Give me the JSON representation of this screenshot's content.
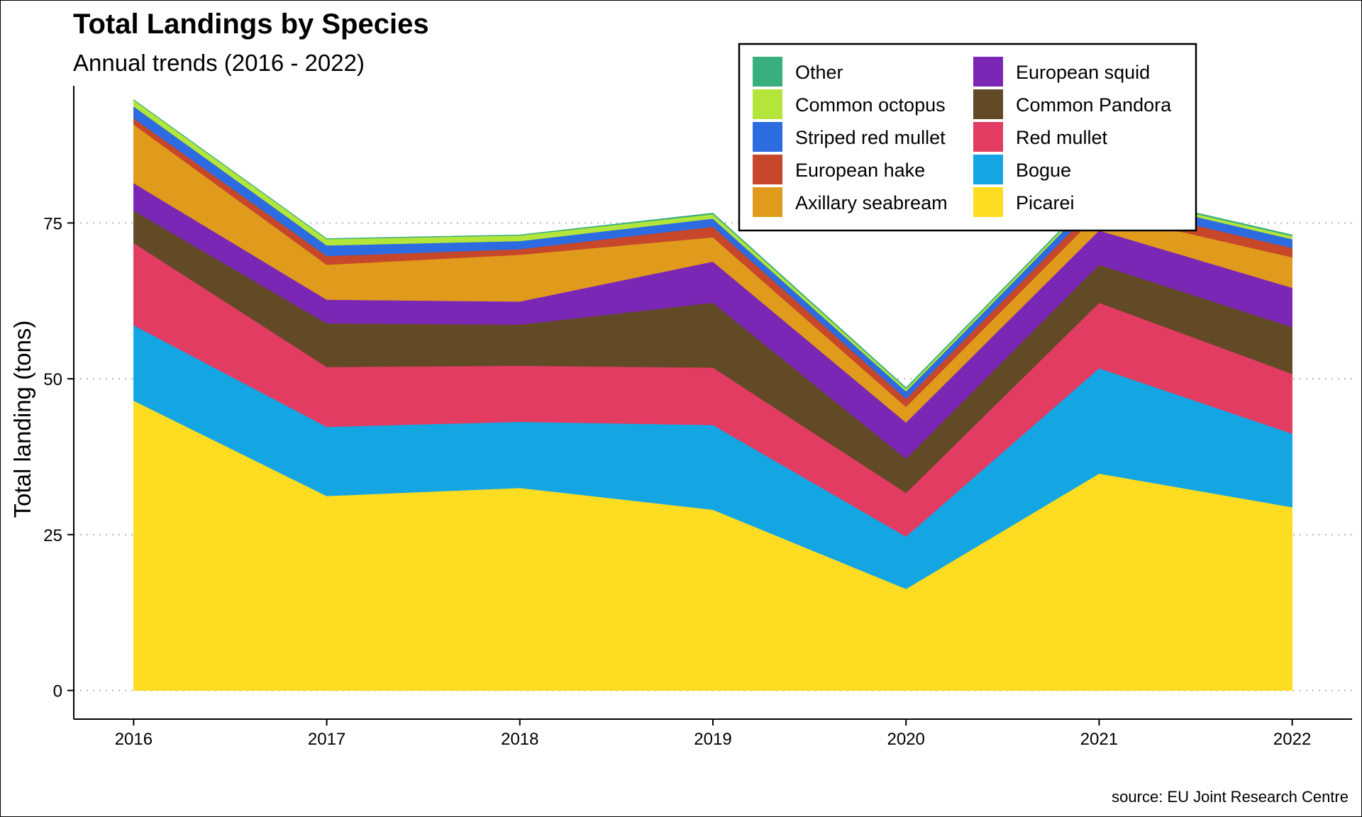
{
  "chart_data": {
    "type": "area",
    "stacked": true,
    "title": "Total Landings by Species",
    "subtitle": "Annual trends (2016 - 2022)",
    "xlabel": "",
    "ylabel": "Total landing (tons)",
    "caption": "source: EU Joint Research Centre",
    "x": [
      2016,
      2017,
      2018,
      2019,
      2020,
      2021,
      2022
    ],
    "ylim": [
      -4.6,
      97
    ],
    "yticks": [
      0,
      25,
      50,
      75
    ],
    "grid": "horizontal dotted",
    "legend_position": "top-right",
    "series": [
      {
        "name": "Picarei",
        "color": "#FDDC22",
        "values": [
          46.5,
          31.2,
          32.5,
          29.0,
          16.3,
          34.8,
          29.4
        ]
      },
      {
        "name": "Bogue",
        "color": "#14A6E3",
        "values": [
          12.1,
          11.1,
          10.6,
          13.6,
          8.4,
          16.9,
          11.8
        ]
      },
      {
        "name": "Red mullet",
        "color": "#E23C62",
        "values": [
          13.2,
          9.6,
          9.0,
          9.2,
          7.0,
          10.5,
          9.6
        ]
      },
      {
        "name": "Common Pandora",
        "color": "#634A27",
        "values": [
          5.2,
          7.0,
          6.6,
          10.4,
          5.5,
          6.1,
          7.5
        ]
      },
      {
        "name": "European squid",
        "color": "#7B27B5",
        "values": [
          4.4,
          3.8,
          3.7,
          6.6,
          5.8,
          5.5,
          6.3
        ]
      },
      {
        "name": "Axillary seabream",
        "color": "#E19B1C",
        "values": [
          9.4,
          5.6,
          7.5,
          3.9,
          2.5,
          2.8,
          4.9
        ]
      },
      {
        "name": "European hake",
        "color": "#C7472A",
        "values": [
          1.0,
          1.4,
          0.9,
          1.7,
          1.3,
          1.6,
          1.5
        ]
      },
      {
        "name": "Striped red mullet",
        "color": "#2D6BE0",
        "values": [
          1.9,
          1.7,
          1.3,
          1.3,
          1.2,
          1.4,
          1.4
        ]
      },
      {
        "name": "Common octopus",
        "color": "#B3E53A",
        "values": [
          1.0,
          1.0,
          0.9,
          0.7,
          0.4,
          0.4,
          0.5
        ]
      },
      {
        "name": "Other",
        "color": "#38AF7C",
        "values": [
          0.1,
          0.1,
          0.1,
          0.2,
          0.2,
          0.2,
          0.2
        ]
      }
    ],
    "legend_order": [
      "Other",
      "European squid",
      "Common octopus",
      "Common Pandora",
      "Striped red mullet",
      "Red mullet",
      "European hake",
      "Bogue",
      "Axillary seabream",
      "Picarei"
    ]
  }
}
